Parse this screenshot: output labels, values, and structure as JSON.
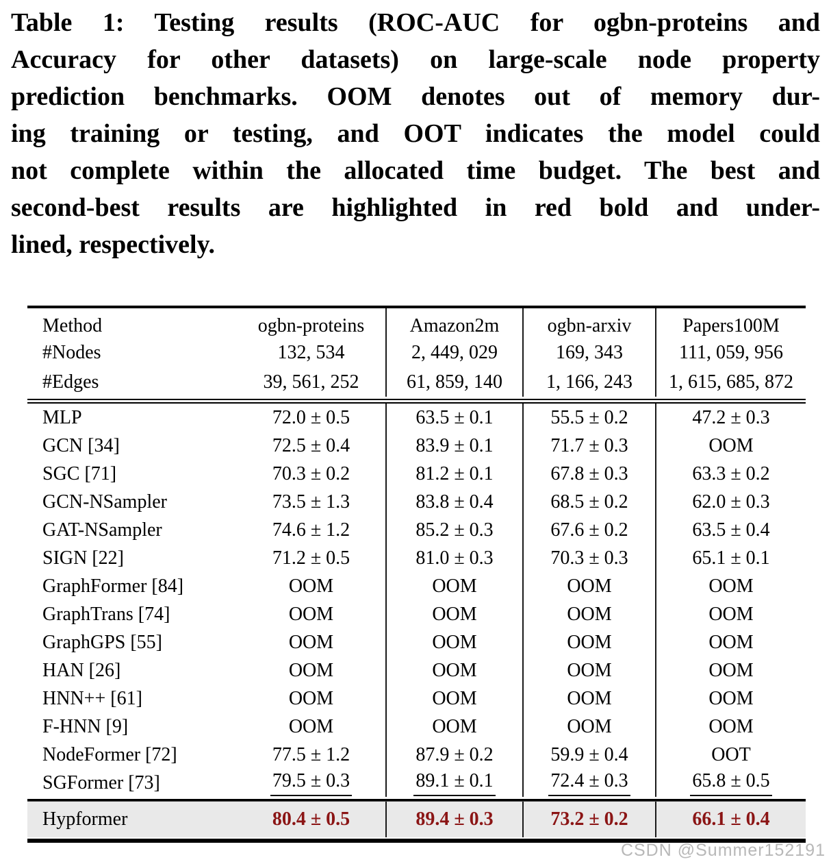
{
  "caption": {
    "lines": [
      "Table 1: Testing results (ROC-AUC for ogbn-proteins and",
      "Accuracy for other datasets) on large-scale node property",
      "prediction benchmarks. OOM denotes out of memory dur-",
      "ing training or testing, and OOT indicates the model could",
      "not complete within the allocated time budget. The best and",
      "second-best results are highlighted in red bold and under-",
      "lined, respectively."
    ]
  },
  "table": {
    "columns": [
      "Method",
      "ogbn-proteins",
      "Amazon2m",
      "ogbn-arxiv",
      "Papers100M"
    ],
    "meta_rows": [
      {
        "label": "#Nodes",
        "values": [
          "132, 534",
          "2, 449, 029",
          "169, 343",
          "111, 059, 956"
        ]
      },
      {
        "label": "#Edges",
        "values": [
          "39, 561, 252",
          "61, 859, 140",
          "1, 166, 243",
          "1, 615, 685, 872"
        ]
      }
    ],
    "rows": [
      {
        "method": "MLP",
        "values": [
          "72.0 ± 0.5",
          "63.5 ± 0.1",
          "55.5 ± 0.2",
          "47.2 ± 0.3"
        ]
      },
      {
        "method": "GCN [34]",
        "values": [
          "72.5 ± 0.4",
          "83.9 ± 0.1",
          "71.7 ± 0.3",
          "OOM"
        ]
      },
      {
        "method": "SGC [71]",
        "values": [
          "70.3 ± 0.2",
          "81.2 ± 0.1",
          "67.8 ± 0.3",
          "63.3 ± 0.2"
        ]
      },
      {
        "method": "GCN-NSampler",
        "values": [
          "73.5 ± 1.3",
          "83.8 ± 0.4",
          "68.5 ± 0.2",
          "62.0 ± 0.3"
        ]
      },
      {
        "method": "GAT-NSampler",
        "values": [
          "74.6 ± 1.2",
          "85.2 ± 0.3",
          "67.6 ± 0.2",
          "63.5 ± 0.4"
        ]
      },
      {
        "method": "SIGN [22]",
        "values": [
          "71.2 ± 0.5",
          "81.0 ± 0.3",
          "70.3 ± 0.3",
          "65.1 ± 0.1"
        ]
      },
      {
        "method": "GraphFormer [84]",
        "values": [
          "OOM",
          "OOM",
          "OOM",
          "OOM"
        ]
      },
      {
        "method": "GraphTrans [74]",
        "values": [
          "OOM",
          "OOM",
          "OOM",
          "OOM"
        ]
      },
      {
        "method": "GraphGPS [55]",
        "values": [
          "OOM",
          "OOM",
          "OOM",
          "OOM"
        ]
      },
      {
        "method": "HAN [26]",
        "values": [
          "OOM",
          "OOM",
          "OOM",
          "OOM"
        ]
      },
      {
        "method": "HNN++ [61]",
        "values": [
          "OOM",
          "OOM",
          "OOM",
          "OOM"
        ]
      },
      {
        "method": "F-HNN [9]",
        "values": [
          "OOM",
          "OOM",
          "OOM",
          "OOM"
        ]
      },
      {
        "method": "NodeFormer [72]",
        "values": [
          "77.5 ± 1.2",
          "87.9 ± 0.2",
          "59.9 ± 0.4",
          "OOT"
        ]
      },
      {
        "method": "SGFormer [73]",
        "values": [
          "79.5 ± 0.3",
          "89.1 ± 0.1",
          "72.4 ± 0.3",
          "65.8 ± 0.5"
        ],
        "underline": true
      }
    ],
    "highlight_row": {
      "method": "Hypformer",
      "values": [
        "80.4 ± 0.5",
        "89.4 ± 0.3",
        "73.2 ± 0.2",
        "66.1 ± 0.4"
      ],
      "bold_red": true
    }
  },
  "colors": {
    "best_value": "#8b1515",
    "highlight_row_bg": "#e9e9e9",
    "rule": "#000000",
    "watermark": "#b8b8b8"
  },
  "watermark": {
    "text": "CSDN @Summer152191"
  }
}
